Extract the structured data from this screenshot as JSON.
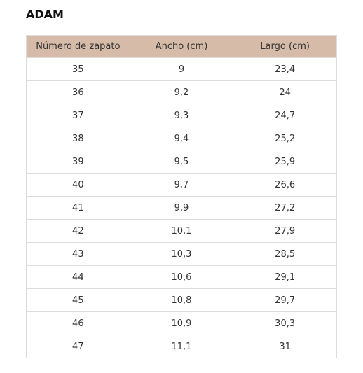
{
  "header": {
    "title": "ADAM"
  },
  "table": {
    "columns": [
      "Número de zapato",
      "Ancho (cm)",
      "Largo (cm)"
    ],
    "rows": [
      [
        "35",
        "9",
        "23,4"
      ],
      [
        "36",
        "9,2",
        "24"
      ],
      [
        "37",
        "9,3",
        "24,7"
      ],
      [
        "38",
        "9,4",
        "25,2"
      ],
      [
        "39",
        "9,5",
        "25,9"
      ],
      [
        "40",
        "9,7",
        "26,6"
      ],
      [
        "41",
        "9,9",
        "27,2"
      ],
      [
        "42",
        "10,1",
        "27,9"
      ],
      [
        "43",
        "10,3",
        "28,5"
      ],
      [
        "44",
        "10,6",
        "29,1"
      ],
      [
        "45",
        "10,8",
        "29,7"
      ],
      [
        "46",
        "10,9",
        "30,3"
      ],
      [
        "47",
        "11,1",
        "31"
      ]
    ]
  }
}
